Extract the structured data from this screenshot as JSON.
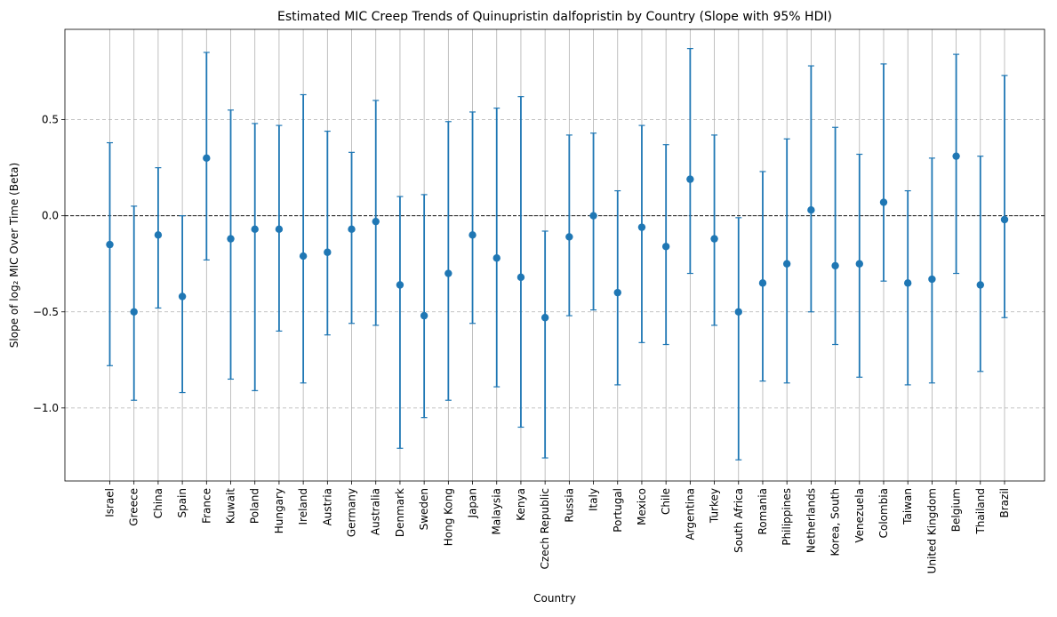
{
  "chart_data": {
    "type": "scatter",
    "title": "Estimated MIC Creep Trends of Quinupristin dalfopristin by Country (Slope with 95% HDI)",
    "xlabel": "Country",
    "ylabel": "Slope of log₂ MIC Over Time (Beta)",
    "ylim": [
      -1.38,
      0.97
    ],
    "yticks": [
      0.5,
      0.0,
      -0.5,
      -1.0
    ],
    "ytick_labels": [
      "0.5",
      "0.0",
      "−0.5",
      "−1.0"
    ],
    "reference_line": 0.0,
    "grid": "x solid, y dashed",
    "marker_color": "#1f77b4",
    "categories": [
      "Israel",
      "Greece",
      "China",
      "Spain",
      "France",
      "Kuwait",
      "Poland",
      "Hungary",
      "Ireland",
      "Austria",
      "Germany",
      "Australia",
      "Denmark",
      "Sweden",
      "Hong Kong",
      "Japan",
      "Malaysia",
      "Kenya",
      "Czech Republic",
      "Russia",
      "Italy",
      "Portugal",
      "Mexico",
      "Chile",
      "Argentina",
      "Turkey",
      "South Africa",
      "Romania",
      "Philippines",
      "Netherlands",
      "Korea, South",
      "Venezuela",
      "Colombia",
      "Taiwan",
      "United Kingdom",
      "Belgium",
      "Thailand",
      "Brazil"
    ],
    "series": [
      {
        "values": [
          -0.15,
          -0.5,
          -0.1,
          -0.42,
          0.3,
          -0.12,
          -0.07,
          -0.07,
          -0.21,
          -0.19,
          -0.07,
          -0.03,
          -0.36,
          -0.52,
          -0.3,
          -0.1,
          -0.22,
          -0.32,
          -0.53,
          -0.11,
          0.0,
          -0.4,
          -0.06,
          -0.16,
          0.19,
          -0.12,
          -0.5,
          -0.35,
          -0.25,
          0.03,
          -0.26,
          -0.25,
          0.07,
          -0.35,
          -0.33,
          0.31,
          -0.36,
          -0.02
        ],
        "lower": [
          -0.78,
          -0.96,
          -0.48,
          -0.92,
          -0.23,
          -0.85,
          -0.91,
          -0.6,
          -0.87,
          -0.62,
          -0.56,
          -0.57,
          -1.21,
          -1.05,
          -0.96,
          -0.56,
          -0.89,
          -1.1,
          -1.26,
          -0.52,
          -0.49,
          -0.88,
          -0.66,
          -0.67,
          -0.3,
          -0.57,
          -1.27,
          -0.86,
          -0.87,
          -0.5,
          -0.67,
          -0.84,
          -0.34,
          -0.88,
          -0.87,
          -0.3,
          -0.81,
          -0.53
        ],
        "upper": [
          0.38,
          0.05,
          0.25,
          0.0,
          0.85,
          0.55,
          0.48,
          0.47,
          0.63,
          0.44,
          0.33,
          0.6,
          0.1,
          0.11,
          0.49,
          0.54,
          0.56,
          0.62,
          -0.08,
          0.42,
          0.43,
          0.13,
          0.47,
          0.37,
          0.87,
          0.42,
          -0.01,
          0.23,
          0.4,
          0.78,
          0.46,
          0.32,
          0.79,
          0.13,
          0.3,
          0.84,
          0.31,
          0.73
        ]
      }
    ]
  }
}
